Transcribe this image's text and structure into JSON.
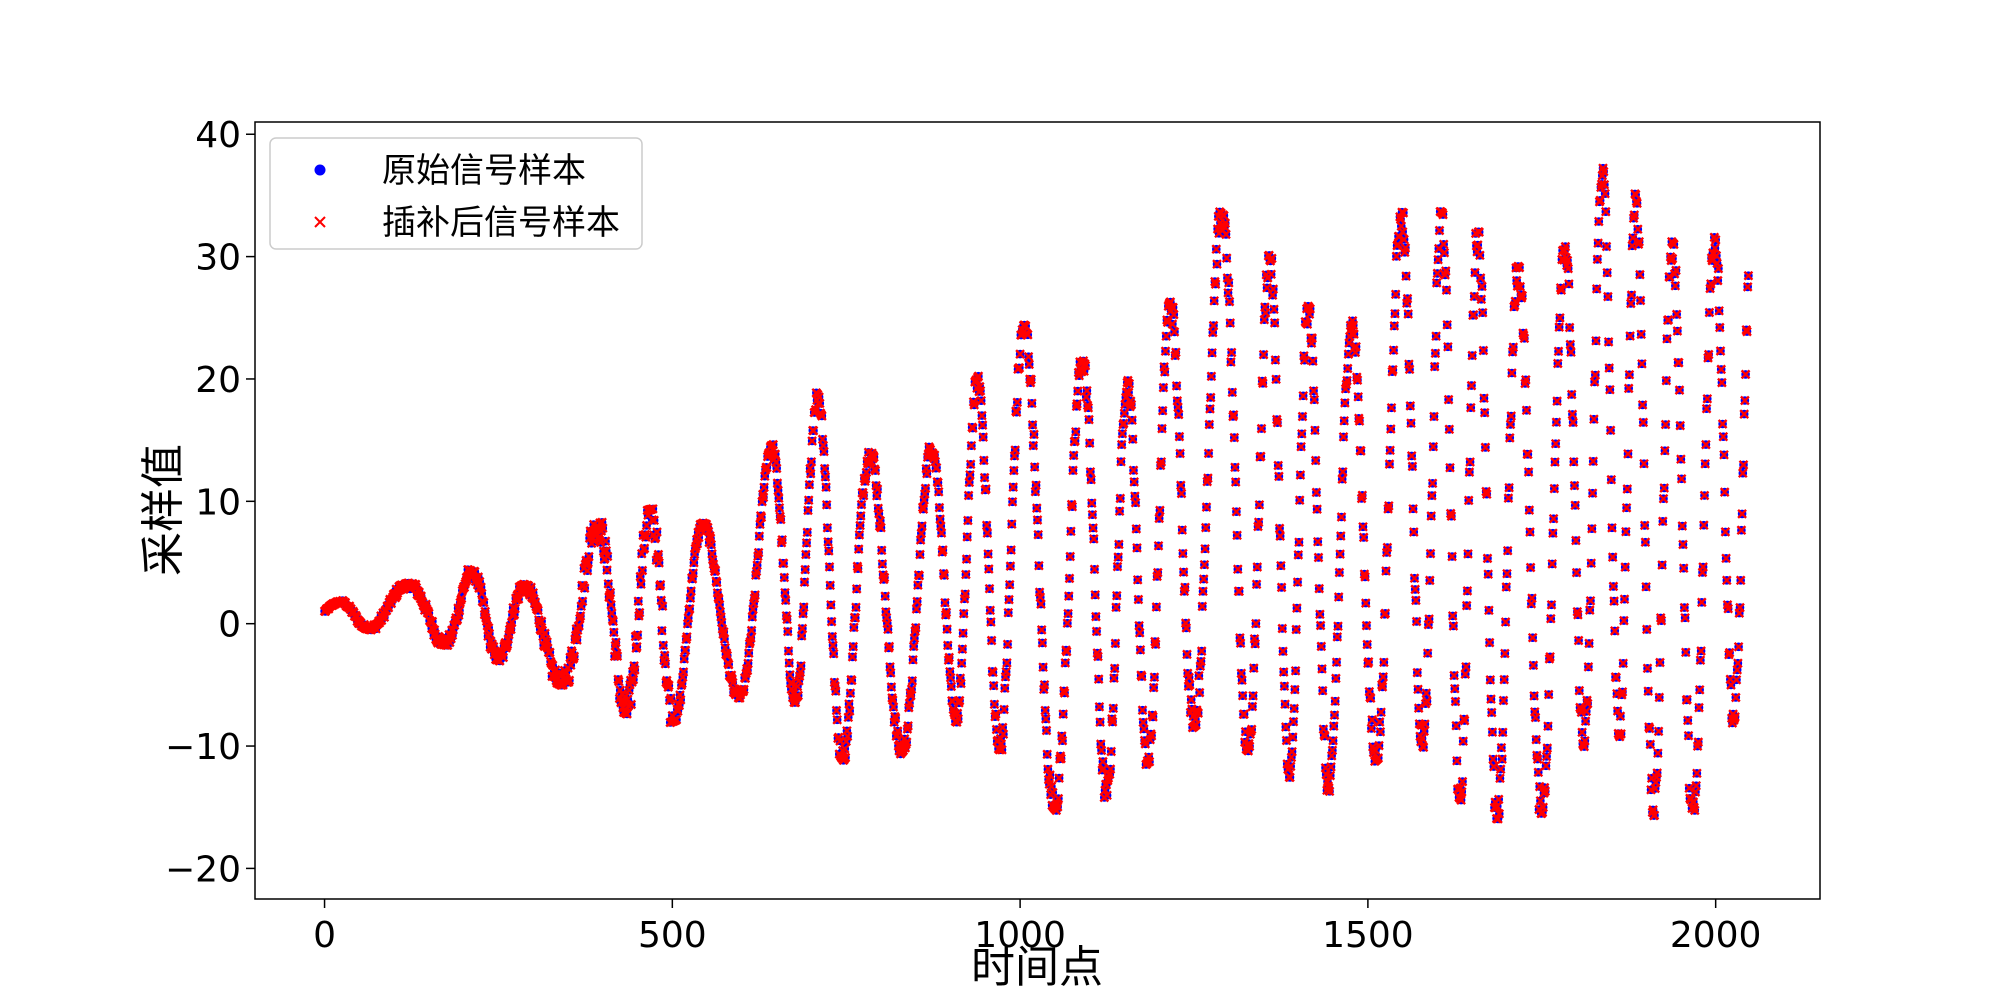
{
  "chart_data": {
    "type": "scatter",
    "title": "",
    "xlabel": "时间点",
    "ylabel": "采样值",
    "xlim": [
      -100,
      2150
    ],
    "ylim": [
      -22.5,
      41
    ],
    "xticks": [
      0,
      500,
      1000,
      1500,
      2000
    ],
    "yticks": [
      -20,
      -10,
      0,
      10,
      20,
      30,
      40
    ],
    "grid": false,
    "legend_position": "top-left",
    "colors": {
      "original": "#0000ff",
      "interpolated": "#ff0000",
      "overlap": "#8b1fa0"
    },
    "n_points": 2048,
    "envelope_description_keyframes": {
      "x": [
        0,
        100,
        200,
        300,
        380,
        480,
        580,
        690,
        780,
        880,
        990,
        1070,
        1170,
        1270,
        1360,
        1460,
        1560,
        1660,
        1750,
        1845,
        1940,
        2040
      ],
      "peak": [
        1.5,
        3,
        4.5,
        3,
        8,
        9.5,
        7.5,
        20,
        14,
        14.5,
        25,
        22,
        19.5,
        34.5,
        30,
        22.5,
        35,
        32,
        27.5,
        38,
        31,
        32
      ],
      "trough": [
        0.5,
        -1,
        -2,
        -4,
        -6,
        -8.5,
        -6,
        -6.5,
        -14,
        -7,
        -11,
        -16.5,
        -12,
        -7.5,
        -12,
        -14,
        -8.5,
        -16.5,
        -15.5,
        -7,
        -19.5,
        -6
      ]
    },
    "series": [
      {
        "name": "原始信号样本",
        "marker": "circle"
      },
      {
        "name": "插补后信号样本",
        "marker": "x"
      }
    ]
  },
  "legend": {
    "items": [
      {
        "label": "原始信号样本"
      },
      {
        "label": "插补后信号样本"
      }
    ]
  }
}
